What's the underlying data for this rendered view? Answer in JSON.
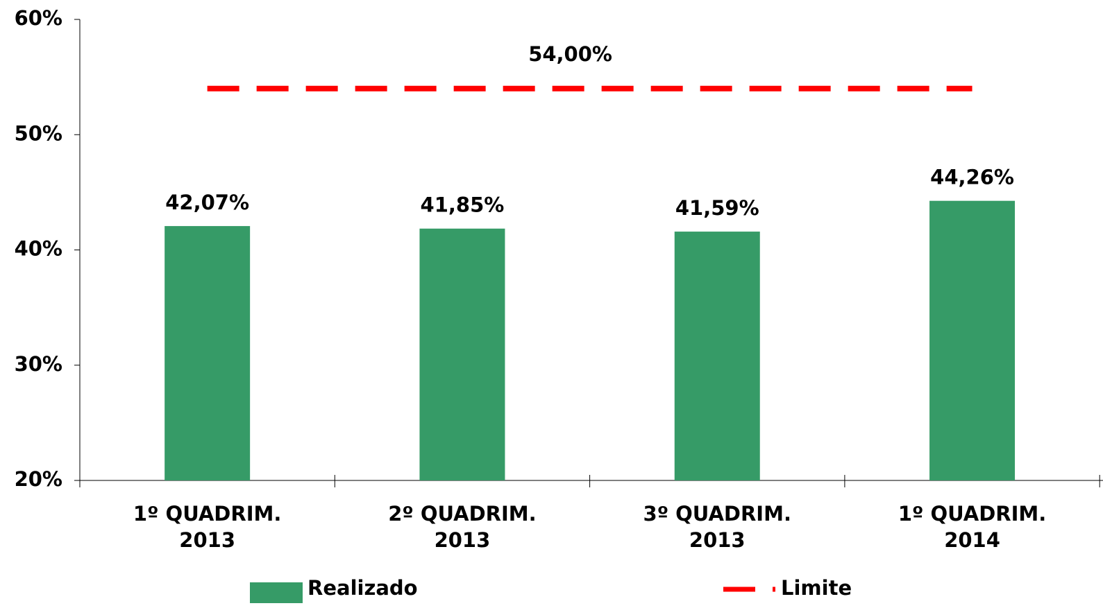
{
  "chart_data": {
    "type": "bar",
    "categories": [
      "1º QUADRIM.\n2013",
      "2º QUADRIM.\n2013",
      "3º QUADRIM.\n2013",
      "1º QUADRIM.\n2014"
    ],
    "series": [
      {
        "name": "Realizado",
        "type": "bar",
        "color": "#369b67",
        "values": [
          42.07,
          41.85,
          41.59,
          44.26
        ],
        "value_labels": [
          "42,07%",
          "41,85%",
          "41,59%",
          "44,26%"
        ]
      },
      {
        "name": "Limite",
        "type": "line",
        "color": "#ff0000",
        "values": [
          54,
          54,
          54,
          54
        ]
      }
    ],
    "annotations": [
      {
        "text": "54,00%",
        "value": 54
      }
    ],
    "ylim": [
      20,
      60
    ],
    "yticks": [
      {
        "value": 20,
        "label": "20%"
      },
      {
        "value": 30,
        "label": "30%"
      },
      {
        "value": 40,
        "label": "40%"
      },
      {
        "value": 50,
        "label": "50%"
      },
      {
        "value": 60,
        "label": "60%"
      }
    ],
    "grid": false
  }
}
